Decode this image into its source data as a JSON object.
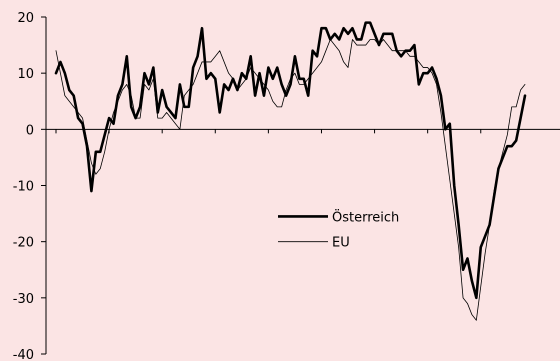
{
  "chart_data": {
    "type": "line",
    "title": "",
    "xlabel": "",
    "ylabel": "",
    "ylim": [
      -40,
      20
    ],
    "yticks": [
      20,
      10,
      0,
      -10,
      -20,
      -30,
      -40
    ],
    "grid": false,
    "legend_position": "center-right",
    "series": [
      {
        "name": "Österreich",
        "color": "#000000",
        "values": [
          10,
          12,
          10,
          7,
          6,
          2,
          1,
          -3,
          -11,
          -4,
          -4,
          -1,
          2,
          1,
          6,
          8,
          13,
          4,
          2,
          4,
          10,
          8,
          11,
          3,
          7,
          4,
          3,
          2,
          8,
          4,
          4,
          11,
          13,
          18,
          9,
          10,
          9,
          3,
          8,
          7,
          9,
          7,
          10,
          9,
          13,
          6,
          10,
          6,
          11,
          9,
          11,
          8,
          6,
          8,
          13,
          9,
          9,
          6,
          14,
          13,
          18,
          18,
          16,
          17,
          16,
          18,
          17,
          18,
          16,
          16,
          19,
          19,
          17,
          15,
          17,
          17,
          17,
          14,
          13,
          14,
          14,
          15,
          8,
          10,
          10,
          11,
          9,
          6,
          0,
          1,
          -10,
          -17,
          -25,
          -23,
          -27,
          -30,
          -21,
          -19,
          -17,
          -12,
          -7,
          -5,
          -3,
          -3,
          -2,
          2,
          6
        ]
      },
      {
        "name": "EU",
        "color": "#000000",
        "values": [
          14,
          10,
          6,
          5,
          4,
          3,
          2,
          -2,
          -6,
          -8,
          -7,
          -4,
          0,
          3,
          5,
          7,
          8,
          6,
          2,
          2,
          8,
          7,
          9,
          2,
          2,
          3,
          2,
          1,
          0,
          6,
          7,
          8,
          10,
          12,
          12,
          12,
          13,
          14,
          12,
          10,
          9,
          7,
          8,
          9,
          11,
          10,
          9,
          8,
          7,
          5,
          4,
          4,
          7,
          9,
          10,
          8,
          8,
          9,
          10,
          11,
          12,
          14,
          16,
          15,
          14,
          12,
          11,
          16,
          15,
          15,
          15,
          16,
          16,
          15,
          16,
          15,
          14,
          14,
          14,
          14,
          13,
          13,
          12,
          11,
          11,
          10,
          8,
          3,
          -3,
          -9,
          -15,
          -21,
          -30,
          -31,
          -33,
          -34,
          -28,
          -22,
          -17,
          -11,
          -7,
          -4,
          -1,
          4,
          4,
          7,
          8
        ]
      }
    ]
  }
}
